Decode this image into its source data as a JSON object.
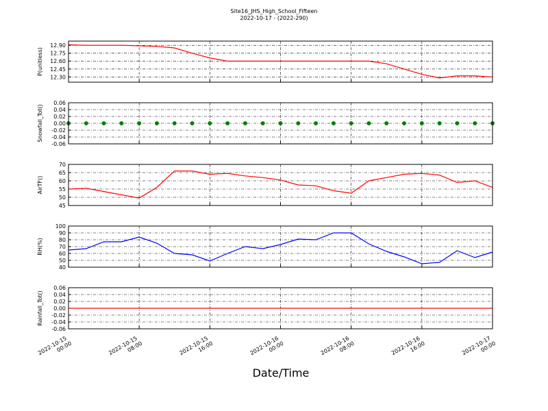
{
  "chart_data": [
    {
      "type": "line",
      "title": "Site16_JHS_High_School_Fifteen",
      "subtitle": "2022-10-17 - (2022-290)",
      "y_label": "P(unitless)",
      "color": "#ff0000",
      "x": [
        "2022-10-15 00:00",
        "2022-10-15 02:00",
        "2022-10-15 04:00",
        "2022-10-15 06:00",
        "2022-10-15 08:00",
        "2022-10-15 10:00",
        "2022-10-15 12:00",
        "2022-10-15 14:00",
        "2022-10-15 16:00",
        "2022-10-15 18:00",
        "2022-10-15 20:00",
        "2022-10-15 22:00",
        "2022-10-16 00:00",
        "2022-10-16 02:00",
        "2022-10-16 04:00",
        "2022-10-16 06:00",
        "2022-10-16 08:00",
        "2022-10-16 10:00",
        "2022-10-16 12:00",
        "2022-10-16 14:00",
        "2022-10-16 16:00",
        "2022-10-16 18:00",
        "2022-10-16 20:00",
        "2022-10-16 22:00",
        "2022-10-17 00:00"
      ],
      "values": [
        12.91,
        12.9,
        12.9,
        12.9,
        12.89,
        12.88,
        12.85,
        12.75,
        12.66,
        12.6,
        12.6,
        12.6,
        12.6,
        12.6,
        12.6,
        12.6,
        12.6,
        12.6,
        12.55,
        12.45,
        12.35,
        12.28,
        12.32,
        12.32,
        12.3
      ],
      "xlim": [
        "2022-10-15 00:00",
        "2022-10-17 00:00"
      ],
      "xticks": [
        "2022-10-15 00:00",
        "2022-10-15 08:00",
        "2022-10-15 16:00",
        "2022-10-16 00:00",
        "2022-10-16 08:00",
        "2022-10-16 16:00",
        "2022-10-17 00:00"
      ],
      "ylim": [
        12.2,
        12.98
      ],
      "yticks": [
        {
          "value": 12.3,
          "label": "12.30"
        },
        12.45,
        {
          "value": 12.6,
          "label": "12.60"
        },
        12.75,
        {
          "value": 12.9,
          "label": "12.90"
        }
      ],
      "grid": true
    },
    {
      "type": "scatter",
      "y_label": "Snowfall_Tot()",
      "color": "#008000",
      "x": [
        "2022-10-15 00:00",
        "2022-10-15 02:00",
        "2022-10-15 04:00",
        "2022-10-15 06:00",
        "2022-10-15 08:00",
        "2022-10-15 10:00",
        "2022-10-15 12:00",
        "2022-10-15 14:00",
        "2022-10-15 16:00",
        "2022-10-15 18:00",
        "2022-10-15 20:00",
        "2022-10-15 22:00",
        "2022-10-16 00:00",
        "2022-10-16 02:00",
        "2022-10-16 04:00",
        "2022-10-16 06:00",
        "2022-10-16 08:00",
        "2022-10-16 10:00",
        "2022-10-16 12:00",
        "2022-10-16 14:00",
        "2022-10-16 16:00",
        "2022-10-16 18:00",
        "2022-10-16 20:00",
        "2022-10-16 22:00",
        "2022-10-17 00:00"
      ],
      "values": [
        0,
        0,
        0,
        0,
        0,
        0,
        0,
        0,
        0,
        0,
        0,
        0,
        0,
        0,
        0,
        0,
        0,
        0,
        0,
        0,
        0,
        0,
        0,
        0,
        0
      ],
      "xlim": [
        "2022-10-15 00:00",
        "2022-10-17 00:00"
      ],
      "xticks": [
        "2022-10-15 00:00",
        "2022-10-15 08:00",
        "2022-10-15 16:00",
        "2022-10-16 00:00",
        "2022-10-16 08:00",
        "2022-10-16 16:00",
        "2022-10-17 00:00"
      ],
      "ylim": [
        -0.06,
        0.06
      ],
      "yticks": [
        -0.06,
        -0.04,
        -0.02,
        {
          "value": 0,
          "label": "0.00"
        },
        0.02,
        0.04,
        0.06
      ],
      "grid": true
    },
    {
      "type": "line",
      "y_label": "AirTF()",
      "color": "#ff0000",
      "x": [
        "2022-10-15 00:00",
        "2022-10-15 02:00",
        "2022-10-15 04:00",
        "2022-10-15 06:00",
        "2022-10-15 08:00",
        "2022-10-15 10:00",
        "2022-10-15 12:00",
        "2022-10-15 14:00",
        "2022-10-15 16:00",
        "2022-10-15 18:00",
        "2022-10-15 20:00",
        "2022-10-15 22:00",
        "2022-10-16 00:00",
        "2022-10-16 02:00",
        "2022-10-16 04:00",
        "2022-10-16 06:00",
        "2022-10-16 08:00",
        "2022-10-16 10:00",
        "2022-10-16 12:00",
        "2022-10-16 14:00",
        "2022-10-16 16:00",
        "2022-10-16 18:00",
        "2022-10-16 20:00",
        "2022-10-16 22:00",
        "2022-10-17 00:00"
      ],
      "values": [
        55,
        55.5,
        53.5,
        51.5,
        49.5,
        56,
        66,
        66,
        64,
        64.5,
        63,
        62,
        60.5,
        57.5,
        57,
        54,
        52.5,
        60,
        62,
        64,
        64.5,
        63.5,
        59,
        60,
        56
      ],
      "xlim": [
        "2022-10-15 00:00",
        "2022-10-17 00:00"
      ],
      "xticks": [
        "2022-10-15 00:00",
        "2022-10-15 08:00",
        "2022-10-15 16:00",
        "2022-10-16 00:00",
        "2022-10-16 08:00",
        "2022-10-16 16:00",
        "2022-10-17 00:00"
      ],
      "ylim": [
        45,
        70
      ],
      "yticks": [
        45,
        50,
        55,
        60,
        65,
        70
      ],
      "grid": true
    },
    {
      "type": "line",
      "y_label": "RH(%)",
      "color": "#0000ff",
      "x": [
        "2022-10-15 00:00",
        "2022-10-15 02:00",
        "2022-10-15 04:00",
        "2022-10-15 06:00",
        "2022-10-15 08:00",
        "2022-10-15 10:00",
        "2022-10-15 12:00",
        "2022-10-15 14:00",
        "2022-10-15 16:00",
        "2022-10-15 18:00",
        "2022-10-15 20:00",
        "2022-10-15 22:00",
        "2022-10-16 00:00",
        "2022-10-16 02:00",
        "2022-10-16 04:00",
        "2022-10-16 06:00",
        "2022-10-16 08:00",
        "2022-10-16 10:00",
        "2022-10-16 12:00",
        "2022-10-16 14:00",
        "2022-10-16 16:00",
        "2022-10-16 18:00",
        "2022-10-16 20:00",
        "2022-10-16 22:00",
        "2022-10-17 00:00"
      ],
      "values": [
        65,
        67,
        77,
        77,
        84,
        75,
        60,
        58,
        49,
        60,
        70,
        67,
        73,
        81,
        80,
        90,
        90,
        74,
        63,
        55,
        45,
        47,
        64,
        54,
        62
      ],
      "xlim": [
        "2022-10-15 00:00",
        "2022-10-17 00:00"
      ],
      "xticks": [
        "2022-10-15 00:00",
        "2022-10-15 08:00",
        "2022-10-15 16:00",
        "2022-10-16 00:00",
        "2022-10-16 08:00",
        "2022-10-16 16:00",
        "2022-10-17 00:00"
      ],
      "ylim": [
        40,
        100
      ],
      "yticks": [
        40,
        50,
        60,
        70,
        80,
        90,
        100
      ],
      "grid": true
    },
    {
      "type": "line",
      "y_label": "Rainfall_Tot()",
      "x_label": "Date/Time",
      "color": "#ff0000",
      "x": [
        "2022-10-15 00:00",
        "2022-10-15 02:00",
        "2022-10-15 04:00",
        "2022-10-15 06:00",
        "2022-10-15 08:00",
        "2022-10-15 10:00",
        "2022-10-15 12:00",
        "2022-10-15 14:00",
        "2022-10-15 16:00",
        "2022-10-15 18:00",
        "2022-10-15 20:00",
        "2022-10-15 22:00",
        "2022-10-16 00:00",
        "2022-10-16 02:00",
        "2022-10-16 04:00",
        "2022-10-16 06:00",
        "2022-10-16 08:00",
        "2022-10-16 10:00",
        "2022-10-16 12:00",
        "2022-10-16 14:00",
        "2022-10-16 16:00",
        "2022-10-16 18:00",
        "2022-10-16 20:00",
        "2022-10-16 22:00",
        "2022-10-17 00:00"
      ],
      "values": [
        0,
        0,
        0,
        0,
        0,
        0,
        0,
        0,
        0,
        0,
        0,
        0,
        0,
        0,
        0,
        0,
        0,
        0,
        0,
        0,
        0,
        0,
        0,
        0,
        0
      ],
      "xlim": [
        "2022-10-15 00:00",
        "2022-10-17 00:00"
      ],
      "xticks": [
        "2022-10-15 00:00",
        "2022-10-15 08:00",
        "2022-10-15 16:00",
        "2022-10-16 00:00",
        "2022-10-16 08:00",
        "2022-10-16 16:00",
        "2022-10-17 00:00"
      ],
      "ylim": [
        -0.06,
        0.06
      ],
      "yticks": [
        -0.06,
        -0.04,
        -0.02,
        {
          "value": 0,
          "label": "0.00"
        },
        0.02,
        0.04,
        0.06
      ],
      "grid": true
    }
  ]
}
